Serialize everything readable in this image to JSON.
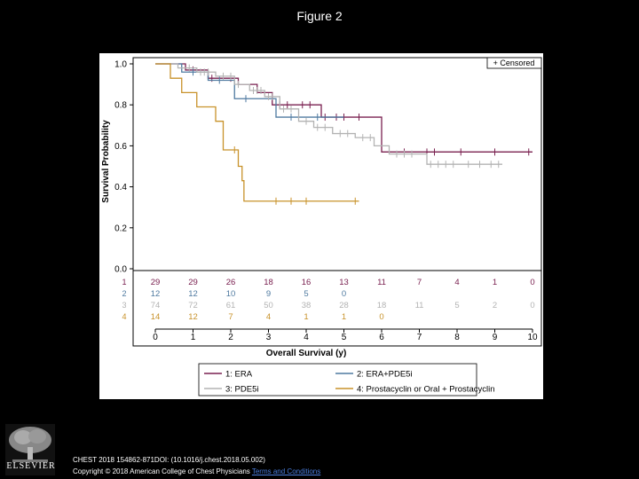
{
  "page_title": "Figure 2",
  "citation": "CHEST 2018 154862-871DOI: (10.1016/j.chest.2018.05.002)",
  "copyright": "Copyright © 2018 American College of Chest Physicians",
  "terms_link": "Terms and Conditions",
  "publisher": "ELSEVIER",
  "chart_data": {
    "type": "line",
    "ylabel": "Survival Probability",
    "xlabel": "Overall Survival (y)",
    "xlim": [
      0,
      10
    ],
    "ylim": [
      0,
      1
    ],
    "x_ticks": [
      "0",
      "1",
      "2",
      "3",
      "4",
      "5",
      "6",
      "7",
      "8",
      "9",
      "10"
    ],
    "y_ticks": [
      "0.0",
      "0.2",
      "0.4",
      "0.6",
      "0.8",
      "1.0"
    ],
    "censored_legend": "+ Censored",
    "series": [
      {
        "id": "1",
        "name": "1: ERA",
        "color": "#7a2150",
        "steps": [
          [
            0,
            1
          ],
          [
            0.8,
            0.97
          ],
          [
            1.4,
            0.93
          ],
          [
            2.2,
            0.9
          ],
          [
            2.7,
            0.86
          ],
          [
            3.1,
            0.8
          ],
          [
            4.4,
            0.74
          ],
          [
            6.0,
            0.57
          ],
          [
            10,
            0.57
          ]
        ],
        "censored": [
          1.0,
          1.5,
          2.0,
          3.3,
          3.5,
          3.9,
          4.1,
          4.5,
          4.8,
          5.0,
          5.4,
          6.6,
          7.2,
          7.4,
          8.1,
          9.0,
          9.9
        ],
        "at_risk": [
          "29",
          "29",
          "26",
          "18",
          "16",
          "13",
          "11",
          "7",
          "4",
          "1",
          "0"
        ]
      },
      {
        "id": "2",
        "name": "2: ERA+PDE5i",
        "color": "#4f7aa0",
        "steps": [
          [
            0,
            1
          ],
          [
            0.7,
            0.96
          ],
          [
            1.4,
            0.92
          ],
          [
            2.1,
            0.83
          ],
          [
            3.2,
            0.74
          ],
          [
            5.0,
            0.74
          ]
        ],
        "censored": [
          1.0,
          1.7,
          2.4,
          3.6,
          4.3
        ],
        "at_risk": [
          "12",
          "12",
          "10",
          "9",
          "5",
          "0",
          "",
          "",
          "",
          "",
          ""
        ]
      },
      {
        "id": "3",
        "name": "3: PDE5i",
        "color": "#b3b3b3",
        "steps": [
          [
            0,
            1
          ],
          [
            0.6,
            0.98
          ],
          [
            1.1,
            0.96
          ],
          [
            1.6,
            0.94
          ],
          [
            2.1,
            0.9
          ],
          [
            2.5,
            0.87
          ],
          [
            2.9,
            0.84
          ],
          [
            3.3,
            0.78
          ],
          [
            3.8,
            0.72
          ],
          [
            4.2,
            0.69
          ],
          [
            4.7,
            0.66
          ],
          [
            5.3,
            0.64
          ],
          [
            5.8,
            0.6
          ],
          [
            6.2,
            0.56
          ],
          [
            7.2,
            0.51
          ],
          [
            9.2,
            0.51
          ]
        ],
        "censored": [
          0.9,
          1.2,
          1.3,
          1.4,
          1.8,
          2.0,
          2.2,
          2.6,
          2.7,
          2.8,
          3.0,
          3.1,
          3.4,
          3.6,
          4.0,
          4.3,
          4.5,
          4.9,
          5.1,
          5.5,
          5.7,
          6.4,
          6.6,
          6.8,
          7.3,
          7.5,
          7.7,
          7.9,
          8.3,
          8.6,
          8.9,
          9.1
        ],
        "at_risk": [
          "74",
          "72",
          "61",
          "50",
          "38",
          "28",
          "18",
          "11",
          "5",
          "2",
          "0"
        ]
      },
      {
        "id": "4",
        "name": "4: Prostacyclin or Oral + Prostacyclin",
        "color": "#c8922a",
        "steps": [
          [
            0,
            1
          ],
          [
            0.4,
            0.93
          ],
          [
            0.7,
            0.86
          ],
          [
            1.1,
            0.79
          ],
          [
            1.6,
            0.72
          ],
          [
            1.8,
            0.58
          ],
          [
            2.2,
            0.5
          ],
          [
            2.3,
            0.43
          ],
          [
            2.35,
            0.33
          ],
          [
            5.4,
            0.33
          ]
        ],
        "censored": [
          2.1,
          3.2,
          3.6,
          4.0,
          5.3
        ],
        "at_risk": [
          "14",
          "12",
          "7",
          "4",
          "1",
          "1",
          "0",
          "",
          "",
          "",
          ""
        ]
      }
    ]
  }
}
